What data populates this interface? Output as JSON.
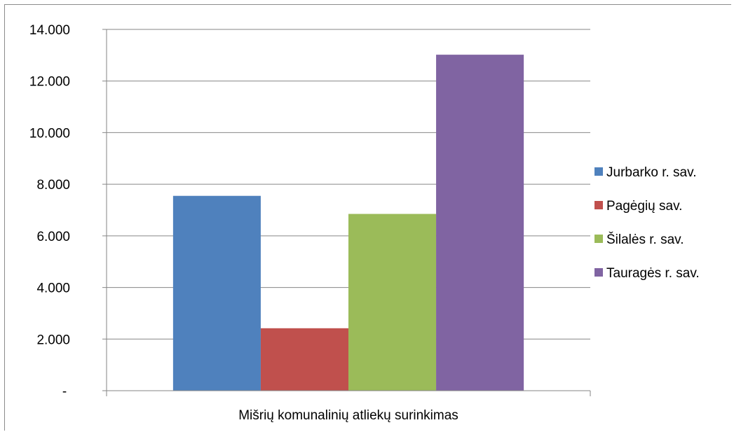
{
  "chart_data": {
    "type": "bar",
    "categories": [
      "Mišrių komunalinių atliekų surinkimas"
    ],
    "series": [
      {
        "name": "Jurbarko r. sav.",
        "values": [
          7550
        ],
        "color": "#4F81BD"
      },
      {
        "name": "Pagėgių sav.",
        "values": [
          2420
        ],
        "color": "#C0504D"
      },
      {
        "name": "Šilalės r. sav.",
        "values": [
          6850
        ],
        "color": "#9BBB59"
      },
      {
        "name": "Tauragės r. sav.",
        "values": [
          13020
        ],
        "color": "#8064A2"
      }
    ],
    "ylim": [
      0,
      14000
    ],
    "yticks": [
      0,
      2000,
      4000,
      6000,
      8000,
      10000,
      12000,
      14000
    ],
    "ytick_labels": [
      "-",
      "2.000",
      "4.000",
      "6.000",
      "8.000",
      "10.000",
      "12.000",
      "14.000"
    ],
    "grid": true,
    "legend_position": "right"
  }
}
